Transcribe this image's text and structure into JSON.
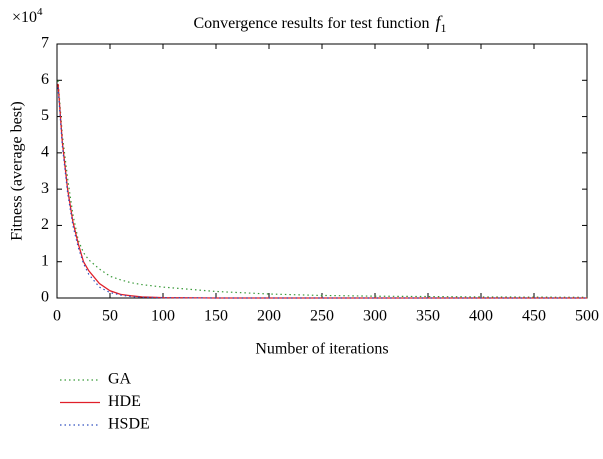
{
  "chart_data": {
    "type": "line",
    "title": "Convergence results for test function",
    "title_symbol": "f",
    "title_subscript": "1",
    "y_multiplier": {
      "base": "×10",
      "exponent": "4"
    },
    "x_label": "Number of iterations",
    "y_label": "Fitness (average best)",
    "x": [
      1,
      5,
      10,
      15,
      20,
      25,
      30,
      40,
      50,
      60,
      70,
      80,
      100,
      150,
      200,
      250,
      300,
      400,
      500
    ],
    "series": [
      {
        "name": "GA",
        "color": "#3a9a3a",
        "dash": "dotted",
        "values": [
          6.0,
          4.5,
          3.3,
          2.3,
          1.6,
          1.25,
          1.05,
          0.8,
          0.6,
          0.5,
          0.42,
          0.37,
          0.3,
          0.18,
          0.11,
          0.07,
          0.05,
          0.03,
          0.02
        ]
      },
      {
        "name": "HDE",
        "color": "#e0202a",
        "dash": "solid",
        "values": [
          5.9,
          4.3,
          3.0,
          2.1,
          1.5,
          1.0,
          0.75,
          0.4,
          0.2,
          0.1,
          0.06,
          0.03,
          0.01,
          0,
          0,
          0,
          0,
          0,
          0
        ]
      },
      {
        "name": "HSDE",
        "color": "#3050c0",
        "dash": "dotted",
        "values": [
          5.8,
          4.2,
          2.9,
          2.0,
          1.4,
          0.95,
          0.65,
          0.3,
          0.15,
          0.08,
          0.04,
          0.02,
          0.01,
          0,
          0,
          0,
          0,
          0,
          0
        ]
      }
    ],
    "xlim": [
      0,
      500
    ],
    "xticks": [
      0,
      50,
      100,
      150,
      200,
      250,
      300,
      350,
      400,
      450,
      500
    ],
    "ylim": [
      0,
      7
    ],
    "yticks": [
      0,
      1,
      2,
      3,
      4,
      5,
      6,
      7
    ],
    "grid": false,
    "legend": "bottom-left"
  }
}
